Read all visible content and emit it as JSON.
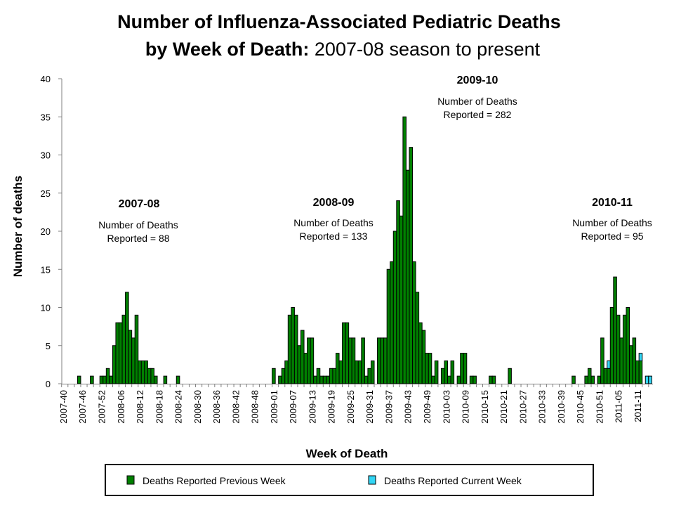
{
  "chart_data": {
    "type": "bar",
    "stacked": true,
    "title_line1": "Number of Influenza-Associated Pediatric Deaths",
    "title_line2_bold": "by Week of Death:",
    "title_line2_normal": " 2007-08 season to present",
    "xlabel": "Week of Death",
    "ylabel": "Number of deaths",
    "ylim": [
      0,
      40
    ],
    "yticks": [
      0,
      5,
      10,
      15,
      20,
      25,
      30,
      35,
      40
    ],
    "xtick_labels": [
      "2007-40",
      "2007-46",
      "2007-52",
      "2008-06",
      "2008-12",
      "2008-18",
      "2008-24",
      "2008-30",
      "2008-36",
      "2008-42",
      "2008-48",
      "2009-01",
      "2009-07",
      "2009-13",
      "2009-19",
      "2009-25",
      "2009-31",
      "2009-37",
      "2009-43",
      "2009-49",
      "2010-03",
      "2010-09",
      "2010-15",
      "2010-21",
      "2010-27",
      "2010-33",
      "2010-39",
      "2010-45",
      "2010-51",
      "2011-05",
      "2011-11"
    ],
    "grid": false,
    "legend_position": "bottom",
    "categories": [
      "2007-40",
      "2007-41",
      "2007-42",
      "2007-43",
      "2007-44",
      "2007-45",
      "2007-46",
      "2007-47",
      "2007-48",
      "2007-49",
      "2007-50",
      "2007-51",
      "2007-52",
      "2008-01",
      "2008-02",
      "2008-03",
      "2008-04",
      "2008-05",
      "2008-06",
      "2008-07",
      "2008-08",
      "2008-09",
      "2008-10",
      "2008-11",
      "2008-12",
      "2008-13",
      "2008-14",
      "2008-15",
      "2008-16",
      "2008-17",
      "2008-18",
      "2008-19",
      "2008-20",
      "2008-21",
      "2008-22",
      "2008-23",
      "2008-24",
      "2008-25",
      "2008-26",
      "2008-27",
      "2008-28",
      "2008-29",
      "2008-30",
      "2008-31",
      "2008-32",
      "2008-33",
      "2008-34",
      "2008-35",
      "2008-36",
      "2008-37",
      "2008-38",
      "2008-39",
      "2008-40",
      "2008-41",
      "2008-42",
      "2008-43",
      "2008-44",
      "2008-45",
      "2008-46",
      "2008-47",
      "2008-48",
      "2008-49",
      "2008-50",
      "2008-51",
      "2008-52",
      "2008-53",
      "2009-01",
      "2009-02",
      "2009-03",
      "2009-04",
      "2009-05",
      "2009-06",
      "2009-07",
      "2009-08",
      "2009-09",
      "2009-10",
      "2009-11",
      "2009-12",
      "2009-13",
      "2009-14",
      "2009-15",
      "2009-16",
      "2009-17",
      "2009-18",
      "2009-19",
      "2009-20",
      "2009-21",
      "2009-22",
      "2009-23",
      "2009-24",
      "2009-25",
      "2009-26",
      "2009-27",
      "2009-28",
      "2009-29",
      "2009-30",
      "2009-31",
      "2009-32",
      "2009-33",
      "2009-34",
      "2009-35",
      "2009-36",
      "2009-37",
      "2009-38",
      "2009-39",
      "2009-40",
      "2009-41",
      "2009-42",
      "2009-43",
      "2009-44",
      "2009-45",
      "2009-46",
      "2009-47",
      "2009-48",
      "2009-49",
      "2009-50",
      "2009-51",
      "2009-52",
      "2010-01",
      "2010-02",
      "2010-03",
      "2010-04",
      "2010-05",
      "2010-06",
      "2010-07",
      "2010-08",
      "2010-09",
      "2010-10",
      "2010-11",
      "2010-12",
      "2010-13",
      "2010-14",
      "2010-15",
      "2010-16",
      "2010-17",
      "2010-18",
      "2010-19",
      "2010-20",
      "2010-21",
      "2010-22",
      "2010-23",
      "2010-24",
      "2010-25",
      "2010-26",
      "2010-27",
      "2010-28",
      "2010-29",
      "2010-30",
      "2010-31",
      "2010-32",
      "2010-33",
      "2010-34",
      "2010-35",
      "2010-36",
      "2010-37",
      "2010-38",
      "2010-39",
      "2010-40",
      "2010-41",
      "2010-42",
      "2010-43",
      "2010-44",
      "2010-45",
      "2010-46",
      "2010-47",
      "2010-48",
      "2010-49",
      "2010-50",
      "2010-51",
      "2010-52",
      "2011-01",
      "2011-02",
      "2011-03",
      "2011-04",
      "2011-05",
      "2011-06",
      "2011-07",
      "2011-08",
      "2011-09",
      "2011-10",
      "2011-11",
      "2011-12",
      "2011-13",
      "2011-14",
      "2011-15"
    ],
    "series": [
      {
        "name": "Deaths Reported Previous Week",
        "color": "#008000",
        "values": [
          0,
          0,
          0,
          0,
          0,
          1,
          0,
          0,
          0,
          1,
          0,
          0,
          1,
          1,
          2,
          1,
          5,
          8,
          8,
          9,
          12,
          7,
          6,
          9,
          3,
          3,
          3,
          2,
          2,
          1,
          0,
          0,
          1,
          0,
          0,
          0,
          1,
          0,
          0,
          0,
          0,
          0,
          0,
          0,
          0,
          0,
          0,
          0,
          0,
          0,
          0,
          0,
          0,
          0,
          0,
          0,
          0,
          0,
          0,
          0,
          0,
          0,
          0,
          0,
          0,
          0,
          2,
          0,
          1,
          2,
          3,
          9,
          10,
          9,
          5,
          7,
          4,
          6,
          6,
          1,
          2,
          1,
          1,
          1,
          2,
          2,
          4,
          3,
          8,
          8,
          6,
          6,
          3,
          3,
          6,
          1,
          2,
          3,
          0,
          6,
          6,
          6,
          15,
          16,
          20,
          24,
          22,
          35,
          28,
          31,
          16,
          12,
          8,
          7,
          4,
          4,
          1,
          3,
          0,
          2,
          3,
          1,
          3,
          0,
          1,
          4,
          4,
          0,
          1,
          1,
          0,
          0,
          0,
          0,
          1,
          1,
          0,
          0,
          0,
          0,
          2,
          0,
          0,
          0,
          0,
          0,
          0,
          0,
          0,
          0,
          0,
          0,
          0,
          0,
          0,
          0,
          0,
          0,
          0,
          0,
          1,
          0,
          0,
          0,
          1,
          2,
          1,
          0,
          1,
          6,
          2,
          2,
          10,
          14,
          9,
          6,
          9,
          10,
          5,
          6,
          3,
          3,
          0,
          0,
          0
        ]
      },
      {
        "name": "Deaths Reported Current Week",
        "color": "#33D6F5",
        "values": [
          0,
          0,
          0,
          0,
          0,
          0,
          0,
          0,
          0,
          0,
          0,
          0,
          0,
          0,
          0,
          0,
          0,
          0,
          0,
          0,
          0,
          0,
          0,
          0,
          0,
          0,
          0,
          0,
          0,
          0,
          0,
          0,
          0,
          0,
          0,
          0,
          0,
          0,
          0,
          0,
          0,
          0,
          0,
          0,
          0,
          0,
          0,
          0,
          0,
          0,
          0,
          0,
          0,
          0,
          0,
          0,
          0,
          0,
          0,
          0,
          0,
          0,
          0,
          0,
          0,
          0,
          0,
          0,
          0,
          0,
          0,
          0,
          0,
          0,
          0,
          0,
          0,
          0,
          0,
          0,
          0,
          0,
          0,
          0,
          0,
          0,
          0,
          0,
          0,
          0,
          0,
          0,
          0,
          0,
          0,
          0,
          0,
          0,
          0,
          0,
          0,
          0,
          0,
          0,
          0,
          0,
          0,
          0,
          0,
          0,
          0,
          0,
          0,
          0,
          0,
          0,
          0,
          0,
          0,
          0,
          0,
          0,
          0,
          0,
          0,
          0,
          0,
          0,
          0,
          0,
          0,
          0,
          0,
          0,
          0,
          0,
          0,
          0,
          0,
          0,
          0,
          0,
          0,
          0,
          0,
          0,
          0,
          0,
          0,
          0,
          0,
          0,
          0,
          0,
          0,
          0,
          0,
          0,
          0,
          0,
          0,
          0,
          0,
          0,
          0,
          0,
          0,
          0,
          0,
          0,
          0,
          1,
          0,
          0,
          0,
          0,
          0,
          0,
          0,
          0,
          0,
          1,
          0,
          1,
          1
        ]
      }
    ],
    "annotations": [
      {
        "season": "2007-08",
        "line1": "Number of Deaths",
        "line2": "Reported = 88"
      },
      {
        "season": "2008-09",
        "line1": "Number of Deaths",
        "line2": "Reported = 133"
      },
      {
        "season": "2009-10",
        "line1": "Number of Deaths",
        "line2": "Reported = 282"
      },
      {
        "season": "2010-11",
        "line1": "Number of Deaths",
        "line2": "Reported = 95"
      }
    ]
  }
}
